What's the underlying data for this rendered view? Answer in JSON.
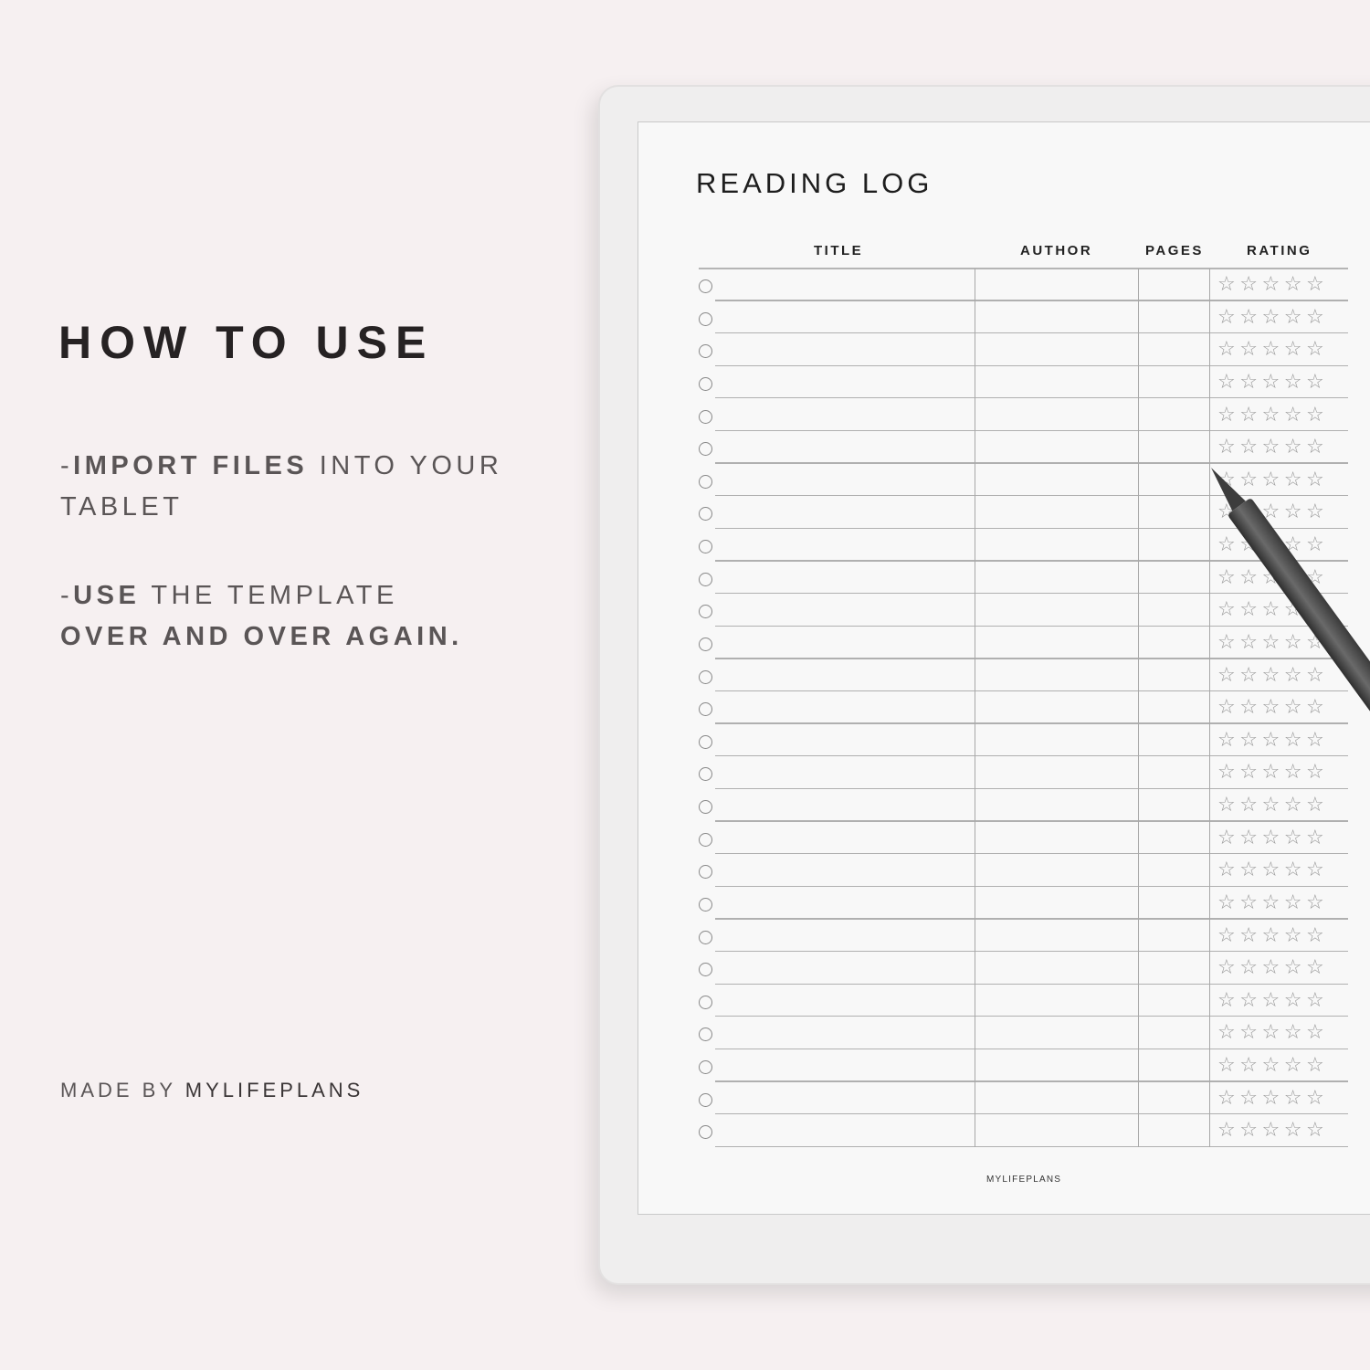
{
  "left": {
    "heading": "HOW TO USE",
    "step1": {
      "prefix": "-",
      "bold": "IMPORT FILES",
      "rest": " INTO YOUR",
      "line2": "TABLET"
    },
    "step2": {
      "prefix": "-",
      "bold": "USE",
      "rest": " THE TEMPLATE",
      "line2": "OVER AND OVER AGAIN."
    },
    "made_by": "MADE BY ",
    "brand": "MYLIFEPLANS"
  },
  "page": {
    "title": "READING LOG",
    "columns": [
      "TITLE",
      "AUTHOR",
      "PAGES",
      "RATING"
    ],
    "row_count": 27,
    "stars_per_row": 5,
    "star_glyph": "☆",
    "footer": "MYLIFEPLANS"
  },
  "colors": {
    "background": "#f6f0f1",
    "text": "#262223",
    "muted_text": "#5a5556"
  }
}
